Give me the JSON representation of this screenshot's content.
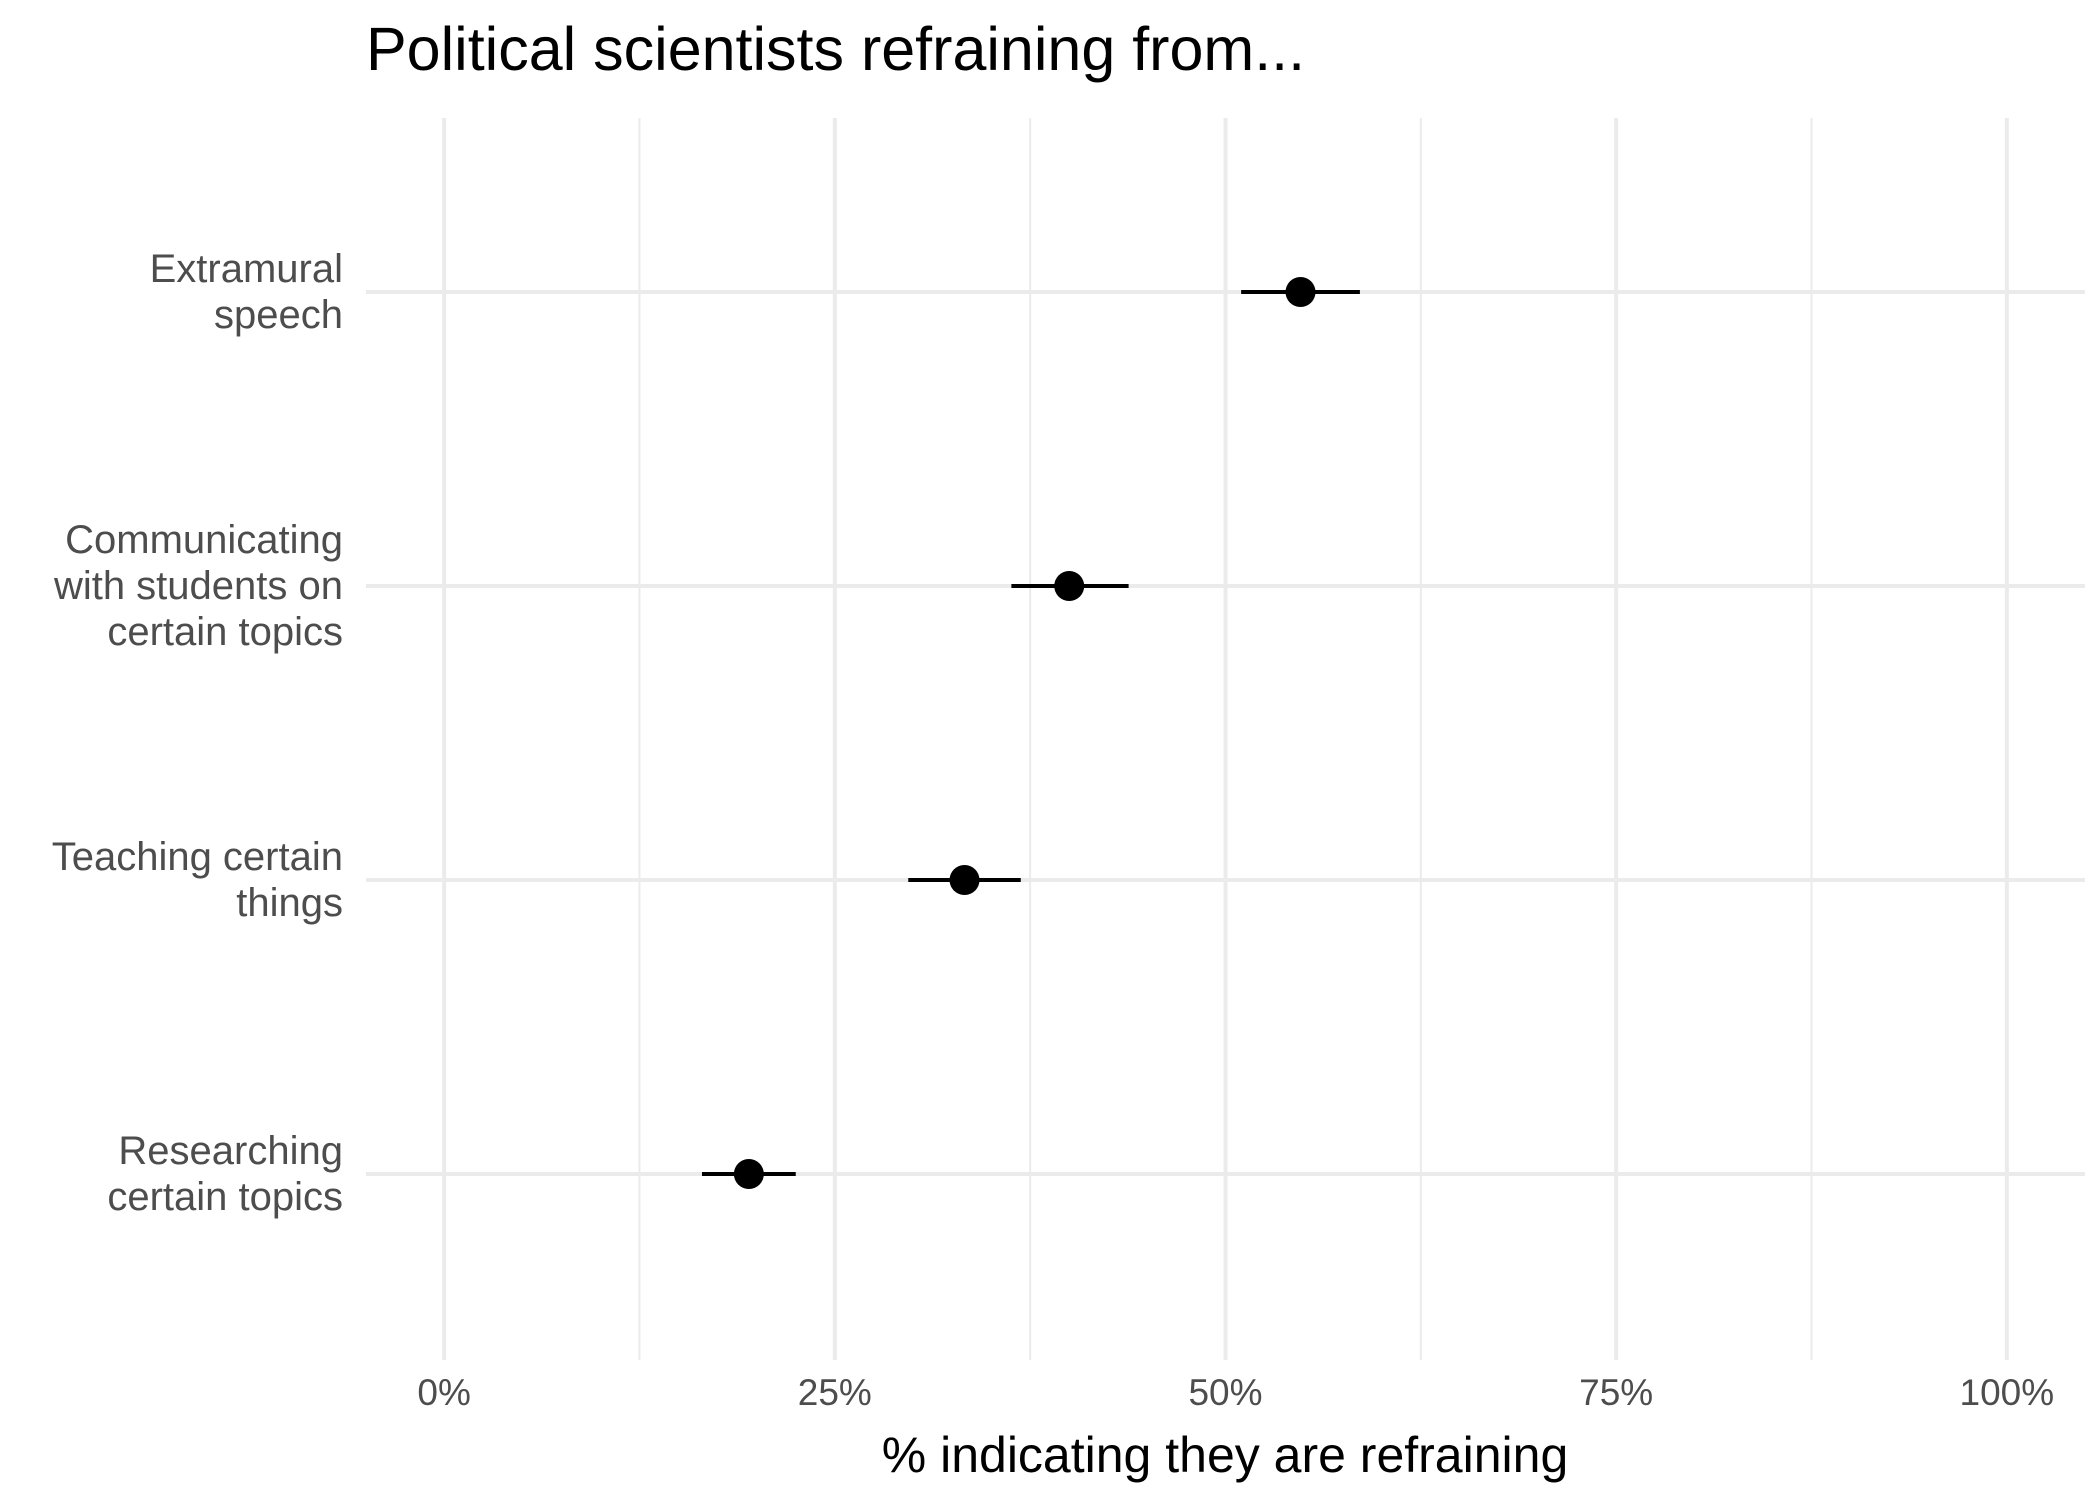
{
  "chart_data": {
    "type": "scatter",
    "title": "Political scientists refraining from...",
    "xlabel": "% indicating they are refraining",
    "ylabel": "",
    "xlim": [
      -0.05,
      1.05
    ],
    "x_ticks": [
      {
        "value": 0,
        "label": "0%"
      },
      {
        "value": 0.25,
        "label": "25%"
      },
      {
        "value": 0.5,
        "label": "50%"
      },
      {
        "value": 0.75,
        "label": "75%"
      },
      {
        "value": 1.0,
        "label": "100%"
      }
    ],
    "x_minor_ticks": [
      0.125,
      0.375,
      0.625,
      0.875
    ],
    "grid": true,
    "legend": "none",
    "categories": [
      [
        "Extramural",
        "speech"
      ],
      [
        "Communicating",
        "with students on",
        "certain topics"
      ],
      [
        "Teaching certain",
        "things"
      ],
      [
        "Researching",
        "certain topics"
      ]
    ],
    "series": [
      {
        "points": [
          {
            "category": 0,
            "value": 0.548,
            "ci_low": 0.51,
            "ci_high": 0.586
          },
          {
            "category": 1,
            "value": 0.4,
            "ci_low": 0.363,
            "ci_high": 0.438
          },
          {
            "category": 2,
            "value": 0.333,
            "ci_low": 0.297,
            "ci_high": 0.369
          },
          {
            "category": 3,
            "value": 0.195,
            "ci_low": 0.165,
            "ci_high": 0.225
          }
        ]
      }
    ],
    "colors": {
      "point": "#000000",
      "errorbar": "#000000",
      "grid_major": "#ebebeb",
      "grid_minor": "#ebebeb",
      "axis_text": "#4d4d4d",
      "title": "#000000"
    }
  }
}
